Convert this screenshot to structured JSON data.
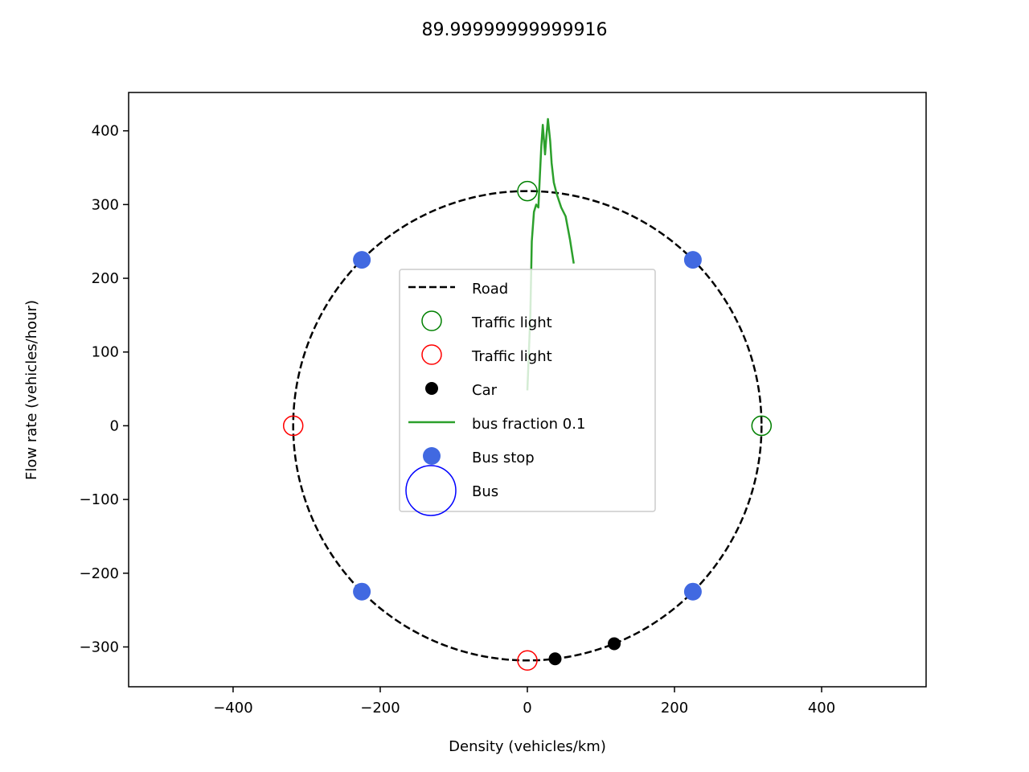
{
  "chart_data": {
    "type": "scatter",
    "title": "89.99999999999916",
    "xlabel": "Density (vehicles/km)",
    "ylabel": "Flow rate (vehicles/hour)",
    "xlim": [
      -542,
      542
    ],
    "ylim": [
      -354,
      452
    ],
    "xticks": [
      -400,
      -200,
      0,
      200,
      400
    ],
    "yticks": [
      -300,
      -200,
      -100,
      0,
      100,
      200,
      300,
      400
    ],
    "xtick_labels": [
      "−400",
      "−200",
      "0",
      "200",
      "400"
    ],
    "ytick_labels": [
      "−300",
      "−200",
      "−100",
      "0",
      "100",
      "200",
      "300",
      "400"
    ],
    "grid": false,
    "legend_position": "center",
    "road": {
      "label": "Road",
      "radius": 318.3,
      "color": "#000000",
      "style": "dashed"
    },
    "traffic_lights_green": {
      "label": "Traffic light",
      "color": "#008000",
      "points": [
        [
          0,
          318.3
        ],
        [
          318.3,
          0
        ]
      ]
    },
    "traffic_lights_red": {
      "label": "Traffic light",
      "color": "#ff0000",
      "points": [
        [
          -318.3,
          0
        ],
        [
          0,
          -318.3
        ]
      ]
    },
    "cars": {
      "label": "Car",
      "color": "#000000",
      "points": [
        [
          37.7,
          -316.1
        ],
        [
          118.1,
          -295.6
        ]
      ]
    },
    "bus_fraction": {
      "label": "bus fraction 0.1",
      "color": "#2ca02c",
      "x": [
        0,
        4,
        6,
        9,
        12,
        15,
        17,
        19,
        21,
        24,
        26,
        28,
        31,
        33,
        36,
        40,
        46,
        52,
        58,
        63
      ],
      "y": [
        48,
        150,
        250,
        290,
        300,
        296,
        340,
        380,
        408,
        368,
        394,
        416,
        386,
        356,
        330,
        314,
        296,
        284,
        252,
        220
      ]
    },
    "bus_stops": {
      "label": "Bus stop",
      "color": "#4169e1",
      "points": [
        [
          -225,
          225
        ],
        [
          225,
          225
        ],
        [
          -225,
          -225
        ],
        [
          225,
          -225
        ]
      ]
    },
    "bus": {
      "label": "Bus",
      "color": "#0000ff"
    }
  }
}
